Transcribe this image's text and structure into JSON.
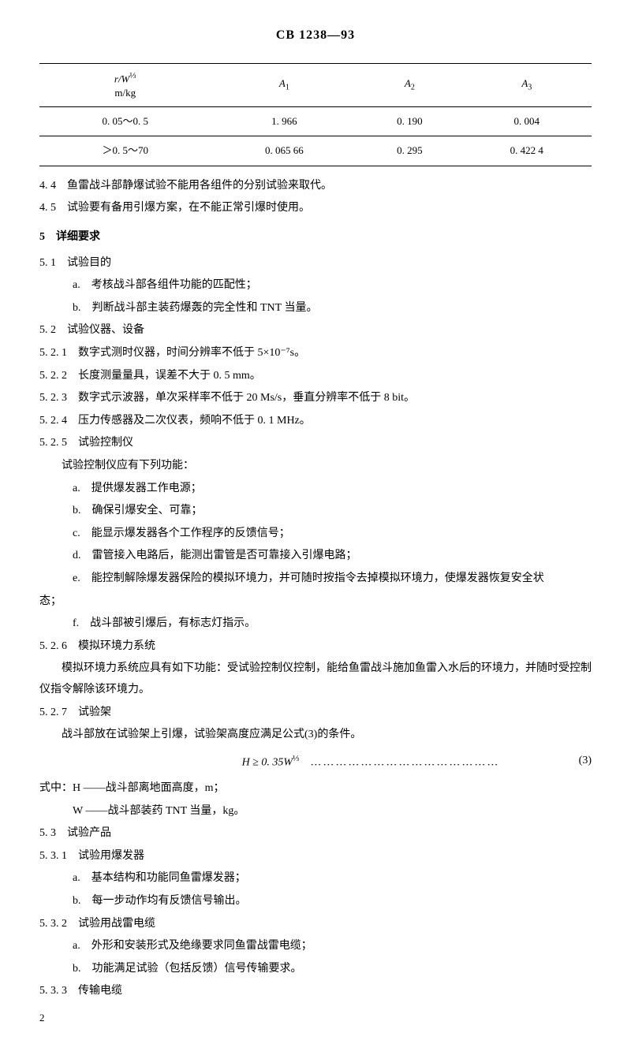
{
  "header": {
    "title": "CB 1238—93"
  },
  "table": {
    "columns": [
      "r/W^{1/3}\nm/kg",
      "A₁",
      "A₂",
      "A₃"
    ],
    "col0_line1": "r/W",
    "col0_frac": "⅓",
    "col0_line2": "m/kg",
    "col1": "A",
    "col1_sub": "1",
    "col2": "A",
    "col2_sub": "2",
    "col3": "A",
    "col3_sub": "3",
    "rows": [
      [
        "0. 05～0. 5",
        "1. 966",
        "0. 190",
        "0. 004"
      ],
      [
        "＞0. 5～70",
        "0. 065 66",
        "0. 295",
        "0. 422 4"
      ]
    ]
  },
  "p_4_4": "4. 4　鱼雷战斗部静爆试验不能用各组件的分别试验来取代。",
  "p_4_5": "4. 5　试验要有备用引爆方案，在不能正常引爆时使用。",
  "h5": "5　详细要求",
  "p_5_1": "5. 1　试验目的",
  "p_5_1_a": "a.　考核战斗部各组件功能的匹配性；",
  "p_5_1_b": "b.　判断战斗部主装药爆轰的完全性和 TNT 当量。",
  "p_5_2": "5. 2　试验仪器、设备",
  "p_5_2_1": "5. 2. 1　数字式测时仪器，时间分辨率不低于 5×10⁻⁷s。",
  "p_5_2_2": "5. 2. 2　长度测量量具，误差不大于 0. 5 mm。",
  "p_5_2_3": "5. 2. 3　数字式示波器，单次采样率不低于 20 Ms/s，垂直分辨率不低于 8 bit。",
  "p_5_2_4": "5. 2. 4　压力传感器及二次仪表，频响不低于 0. 1 MHz。",
  "p_5_2_5": "5. 2. 5　试验控制仪",
  "p_5_2_5_intro": "试验控制仪应有下列功能：",
  "p_5_2_5_a": "a.　提供爆发器工作电源；",
  "p_5_2_5_b": "b.　确保引爆安全、可靠；",
  "p_5_2_5_c": "c.　能显示爆发器各个工作程序的反馈信号；",
  "p_5_2_5_d": "d.　雷管接入电路后，能测出雷管是否可靠接入引爆电路；",
  "p_5_2_5_e": "e.　能控制解除爆发器保险的模拟环境力，并可随时按指令去掉模拟环境力，使爆发器恢复安全状",
  "p_5_2_5_e2": "态；",
  "p_5_2_5_f": "f.　战斗部被引爆后，有标志灯指示。",
  "p_5_2_6": "5. 2. 6　模拟环境力系统",
  "p_5_2_6_body": "模拟环境力系统应具有如下功能：受试验控制仪控制，能给鱼雷战斗施加鱼雷入水后的环境力，并随时受控制仪指令解除该环境力。",
  "p_5_2_7": "5. 2. 7　试验架",
  "p_5_2_7_body": "战斗部放在试验架上引爆，试验架高度应满足公式(3)的条件。",
  "formula": "H ≥ 0. 35W",
  "formula_frac": "⅓",
  "formula_dots": "………………………………………",
  "formula_num": "(3)",
  "formula_where": "式中：H ——战斗部离地面高度，m；",
  "formula_where2": "W ——战斗部装药 TNT 当量，kg。",
  "p_5_3": "5. 3　试验产品",
  "p_5_3_1": "5. 3. 1　试验用爆发器",
  "p_5_3_1_a": "a.　基本结构和功能同鱼雷爆发器；",
  "p_5_3_1_b": "b.　每一步动作均有反馈信号输出。",
  "p_5_3_2": "5. 3. 2　试验用战雷电缆",
  "p_5_3_2_a": "a.　外形和安装形式及绝缘要求同鱼雷战雷电缆；",
  "p_5_3_2_b": "b.　功能满足试验（包括反馈）信号传输要求。",
  "p_5_3_3": "5. 3. 3　传输电缆",
  "page_num": "2"
}
